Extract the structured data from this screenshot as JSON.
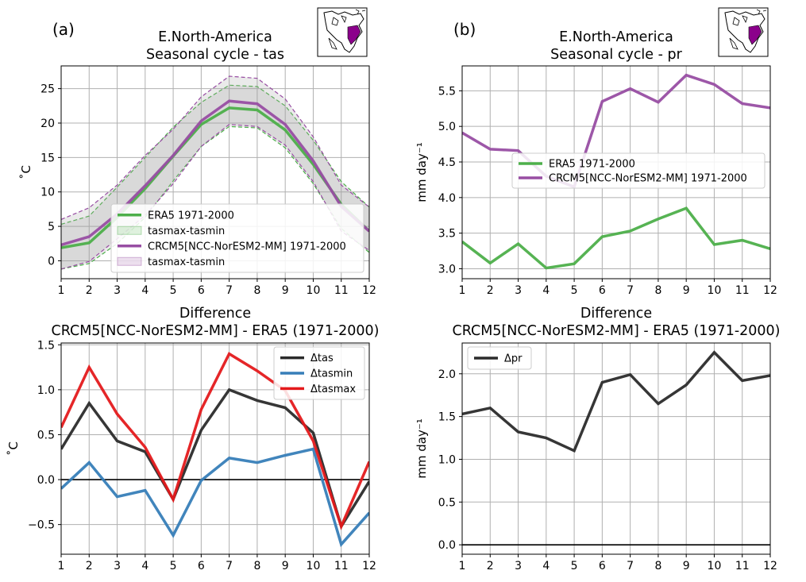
{
  "colors": {
    "era5": "#4daf4a",
    "crcm5": "#984ea3",
    "band_grey": "#a0a0a0",
    "diff_tas": "#2b2b2b",
    "diff_tasmin": "#377eb8",
    "diff_tasmax": "#e41a1c",
    "diff_pr": "#2b2b2b"
  },
  "inset_maps": [
    {
      "name": "map-inset-a",
      "region_color": "#8b008b"
    },
    {
      "name": "map-inset-b",
      "region_color": "#8b008b"
    }
  ],
  "chart_data": [
    {
      "id": "a",
      "panel_label": "(a)",
      "type": "line",
      "title_lines": [
        "E.North-America",
        "Seasonal cycle - tas"
      ],
      "ylabel": "˚C",
      "x": [
        1,
        2,
        3,
        4,
        5,
        6,
        7,
        8,
        9,
        10,
        11,
        12
      ],
      "xticks": [
        "1",
        "2",
        "3",
        "4",
        "5",
        "6",
        "7",
        "8",
        "9",
        "10",
        "11",
        "12"
      ],
      "xlim": [
        1,
        12
      ],
      "ylim": [
        -2.6,
        28.3
      ],
      "yticks": [
        0,
        5,
        10,
        15,
        20,
        25
      ],
      "ytick_labels": [
        "0",
        "5",
        "10",
        "15",
        "20",
        "25"
      ],
      "grid": true,
      "legend_position": "lower-right",
      "series": [
        {
          "name": "ERA5 1971-2000",
          "key": "era5",
          "values": [
            1.9,
            2.6,
            6.3,
            10.5,
            15.2,
            19.8,
            22.2,
            21.9,
            19.0,
            14.0,
            8.2,
            4.3
          ]
        },
        {
          "name": "CRCM5[NCC-NorESM2-MM] 1971-2000",
          "key": "crcm5",
          "values": [
            2.3,
            3.5,
            6.8,
            10.9,
            15.3,
            20.3,
            23.2,
            22.8,
            19.8,
            14.5,
            7.9,
            4.3
          ]
        }
      ],
      "bands": [
        {
          "name": "tasmax-tasmin",
          "key": "era5",
          "upper": [
            5.3,
            6.5,
            10.7,
            15.0,
            19.4,
            23.0,
            25.5,
            25.3,
            22.5,
            17.5,
            11.5,
            7.8
          ],
          "lower": [
            -1.2,
            -0.4,
            2.5,
            6.3,
            11.6,
            16.6,
            19.5,
            19.3,
            16.4,
            11.2,
            4.7,
            1.2
          ]
        },
        {
          "name": "tasmax-tasmin",
          "key": "crcm5",
          "upper": [
            6.0,
            7.7,
            11.0,
            15.3,
            19.1,
            23.8,
            26.8,
            26.5,
            23.5,
            18.0,
            11.0,
            7.8
          ],
          "lower": [
            -1.2,
            -0.1,
            3.2,
            6.6,
            11.2,
            16.6,
            19.8,
            19.5,
            16.8,
            11.5,
            4.3,
            1.5
          ]
        }
      ],
      "legend": [
        "ERA5 1971-2000",
        "tasmax-tasmin",
        "CRCM5[NCC-NorESM2-MM] 1971-2000",
        "tasmax-tasmin"
      ]
    },
    {
      "id": "b",
      "panel_label": "(b)",
      "type": "line",
      "title_lines": [
        "E.North-America",
        "Seasonal cycle - pr"
      ],
      "ylabel": "mm day⁻¹",
      "x": [
        1,
        2,
        3,
        4,
        5,
        6,
        7,
        8,
        9,
        10,
        11,
        12
      ],
      "xticks": [
        "1",
        "2",
        "3",
        "4",
        "5",
        "6",
        "7",
        "8",
        "9",
        "10",
        "11",
        "12"
      ],
      "xlim": [
        1,
        12
      ],
      "ylim": [
        2.86,
        5.85
      ],
      "yticks": [
        3.0,
        3.5,
        4.0,
        4.5,
        5.0,
        5.5
      ],
      "ytick_labels": [
        "3.0",
        "3.5",
        "4.0",
        "4.5",
        "5.0",
        "5.5"
      ],
      "grid": true,
      "legend_position": "center-right",
      "series": [
        {
          "name": "ERA5 1971-2000",
          "key": "era5",
          "values": [
            3.38,
            3.08,
            3.35,
            3.01,
            3.07,
            3.45,
            3.53,
            3.7,
            3.85,
            3.34,
            3.4,
            3.28
          ]
        },
        {
          "name": "CRCM5[NCC-NorESM2-MM] 1971-2000",
          "key": "crcm5",
          "values": [
            4.91,
            4.68,
            4.66,
            4.3,
            4.15,
            5.35,
            5.53,
            5.34,
            5.72,
            5.59,
            5.32,
            5.26
          ]
        }
      ],
      "legend": [
        "ERA5 1971-2000",
        "CRCM5[NCC-NorESM2-MM] 1971-2000"
      ]
    },
    {
      "id": "c",
      "type": "line",
      "title_lines": [
        "Difference",
        "CRCM5[NCC-NorESM2-MM] - ERA5 (1971-2000)"
      ],
      "ylabel": "˚C",
      "x": [
        1,
        2,
        3,
        4,
        5,
        6,
        7,
        8,
        9,
        10,
        11,
        12
      ],
      "xticks": [
        "1",
        "2",
        "3",
        "4",
        "5",
        "6",
        "7",
        "8",
        "9",
        "10",
        "11",
        "12"
      ],
      "xlim": [
        1,
        12
      ],
      "ylim": [
        -0.83,
        1.52
      ],
      "yticks": [
        -0.5,
        0.0,
        0.5,
        1.0,
        1.5
      ],
      "ytick_labels": [
        "−0.5",
        "0.0",
        "0.5",
        "1.0",
        "1.5"
      ],
      "grid": true,
      "zero_line": true,
      "legend_position": "upper-right",
      "series": [
        {
          "name": "Δtas",
          "key": "diff_tas",
          "values": [
            0.34,
            0.85,
            0.43,
            0.31,
            -0.22,
            0.55,
            1.0,
            0.88,
            0.8,
            0.52,
            -0.52,
            -0.02
          ]
        },
        {
          "name": "Δtasmin",
          "key": "diff_tasmin",
          "values": [
            -0.1,
            0.19,
            -0.19,
            -0.12,
            -0.62,
            -0.01,
            0.24,
            0.19,
            0.27,
            0.34,
            -0.72,
            -0.37
          ]
        },
        {
          "name": "Δtasmax",
          "key": "diff_tasmax",
          "values": [
            0.58,
            1.25,
            0.73,
            0.36,
            -0.22,
            0.78,
            1.4,
            1.21,
            0.99,
            0.43,
            -0.52,
            0.2
          ]
        }
      ],
      "legend": [
        "Δtas",
        "Δtasmin",
        "Δtasmax"
      ]
    },
    {
      "id": "d",
      "type": "line",
      "title_lines": [
        "Difference",
        "CRCM5[NCC-NorESM2-MM] - ERA5 (1971-2000)"
      ],
      "ylabel": "mm day⁻¹",
      "x": [
        1,
        2,
        3,
        4,
        5,
        6,
        7,
        8,
        9,
        10,
        11,
        12
      ],
      "xticks": [
        "1",
        "2",
        "3",
        "4",
        "5",
        "6",
        "7",
        "8",
        "9",
        "10",
        "11",
        "12"
      ],
      "xlim": [
        1,
        12
      ],
      "ylim": [
        -0.11,
        2.36
      ],
      "yticks": [
        0.0,
        0.5,
        1.0,
        1.5,
        2.0
      ],
      "ytick_labels": [
        "0.0",
        "0.5",
        "1.0",
        "1.5",
        "2.0"
      ],
      "grid": true,
      "zero_line": true,
      "legend_position": "upper-left",
      "series": [
        {
          "name": "Δpr",
          "key": "diff_pr",
          "values": [
            1.53,
            1.6,
            1.32,
            1.25,
            1.1,
            1.9,
            1.99,
            1.65,
            1.87,
            2.25,
            1.92,
            1.98
          ]
        }
      ],
      "legend": [
        "Δpr"
      ]
    }
  ]
}
